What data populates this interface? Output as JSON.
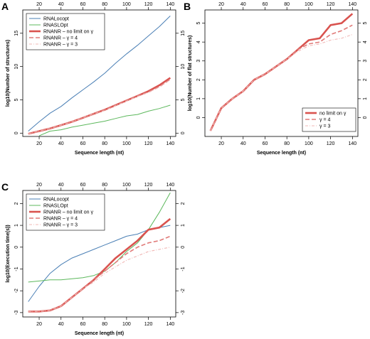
{
  "chart_data": [
    {
      "panel": "A",
      "type": "line",
      "xlabel": "Sequence length (nt)",
      "ylabel": "log10(Number of structures)",
      "xlim": [
        5,
        145
      ],
      "ylim": [
        -0.5,
        18.5
      ],
      "xticks": [
        20,
        40,
        60,
        80,
        100,
        120,
        140
      ],
      "yticks": [
        0,
        5,
        10,
        15
      ],
      "grid": false,
      "legend_position": "top-left",
      "x": [
        10,
        20,
        30,
        40,
        50,
        60,
        70,
        80,
        90,
        100,
        110,
        120,
        130,
        140
      ],
      "series": [
        {
          "name": "RNALocopt",
          "color": "#4a7fb5",
          "width": 1,
          "dash": "",
          "values": [
            0.3,
            1.7,
            3.0,
            4.0,
            5.3,
            6.5,
            7.7,
            9.0,
            10.5,
            11.9,
            13.2,
            14.6,
            16.0,
            17.6
          ]
        },
        {
          "name": "RNASLOpt",
          "color": "#5cb85c",
          "width": 1,
          "dash": "",
          "values": [
            null,
            -0.4,
            0.3,
            0.5,
            0.9,
            1.2,
            1.5,
            1.8,
            2.2,
            2.6,
            2.8,
            3.3,
            3.7,
            4.2
          ]
        },
        {
          "name": "RNANR – no limit on γ",
          "color": "#d9534f",
          "width": 2.6,
          "dash": "",
          "values": [
            -0.1,
            0.3,
            0.7,
            1.2,
            1.7,
            2.3,
            2.9,
            3.5,
            4.2,
            4.9,
            5.6,
            6.3,
            7.2,
            8.3
          ]
        },
        {
          "name": "RNANR – γ = 4",
          "color": "#e07a78",
          "width": 1.6,
          "dash": "6,3",
          "values": [
            -0.1,
            0.3,
            0.7,
            1.2,
            1.7,
            2.3,
            2.9,
            3.5,
            4.2,
            4.9,
            5.6,
            6.2,
            7.0,
            8.1
          ]
        },
        {
          "name": "RNANR – γ = 3",
          "color": "#f1b8b6",
          "width": 1.1,
          "dash": "4,2,1,2",
          "values": [
            -0.1,
            0.3,
            0.7,
            1.2,
            1.7,
            2.3,
            2.9,
            3.4,
            4.1,
            4.8,
            5.5,
            6.1,
            6.9,
            8.0
          ]
        }
      ]
    },
    {
      "panel": "B",
      "type": "line",
      "xlabel": "Sequence length (nt)",
      "ylabel": "log10(Number of flat structures)",
      "xlim": [
        5,
        145
      ],
      "ylim": [
        -1,
        5.7
      ],
      "xticks": [
        20,
        40,
        60,
        80,
        100,
        120,
        140
      ],
      "yticks": [
        0,
        1,
        2,
        3,
        4,
        5
      ],
      "grid": false,
      "legend_position": "bottom-right",
      "x": [
        10,
        20,
        30,
        40,
        50,
        60,
        70,
        80,
        90,
        100,
        110,
        120,
        130,
        140
      ],
      "series": [
        {
          "name": "no limit on γ",
          "color": "#d9534f",
          "width": 2.6,
          "dash": "",
          "values": [
            -0.7,
            0.5,
            1.0,
            1.4,
            2.0,
            2.3,
            2.7,
            3.1,
            3.6,
            4.1,
            4.2,
            4.9,
            5.0,
            5.5
          ]
        },
        {
          "name": "γ = 4",
          "color": "#e07a78",
          "width": 1.6,
          "dash": "6,3",
          "values": [
            -0.7,
            0.5,
            1.0,
            1.4,
            2.0,
            2.3,
            2.7,
            3.1,
            3.6,
            3.9,
            4.0,
            4.4,
            4.6,
            4.9
          ]
        },
        {
          "name": "γ = 3",
          "color": "#f1b8b6",
          "width": 1.1,
          "dash": "4,2,1,2",
          "values": [
            -0.7,
            0.5,
            1.0,
            1.4,
            2.0,
            2.3,
            2.7,
            3.1,
            3.5,
            3.8,
            3.9,
            4.1,
            4.2,
            4.4
          ]
        }
      ]
    },
    {
      "panel": "C",
      "type": "line",
      "xlabel": "Sequence length (nt)",
      "ylabel": "log10(Execution time(s))",
      "xlim": [
        5,
        145
      ],
      "ylim": [
        -3.2,
        2.6
      ],
      "xticks": [
        20,
        40,
        60,
        80,
        100,
        120,
        140
      ],
      "yticks": [
        -3,
        -2,
        -1,
        0,
        1,
        2
      ],
      "grid": false,
      "legend_position": "top-left",
      "x": [
        10,
        20,
        30,
        40,
        50,
        60,
        70,
        80,
        90,
        100,
        110,
        120,
        130,
        140
      ],
      "series": [
        {
          "name": "RNALocopt",
          "color": "#4a7fb5",
          "width": 1,
          "dash": "",
          "values": [
            -2.5,
            -1.8,
            -1.2,
            -0.8,
            -0.5,
            -0.3,
            -0.1,
            0.1,
            0.3,
            0.5,
            0.6,
            0.8,
            0.9,
            1.0
          ]
        },
        {
          "name": "RNASLOpt",
          "color": "#5cb85c",
          "width": 1,
          "dash": "",
          "values": [
            -1.6,
            -1.55,
            -1.5,
            -1.5,
            -1.45,
            -1.4,
            -1.3,
            -1.1,
            -0.7,
            -0.2,
            0.2,
            0.8,
            1.6,
            2.5
          ]
        },
        {
          "name": "RNANR – no limit on γ",
          "color": "#d9534f",
          "width": 2.6,
          "dash": "",
          "values": [
            -2.95,
            -2.95,
            -2.9,
            -2.7,
            -2.3,
            -1.9,
            -1.5,
            -1.0,
            -0.5,
            -0.1,
            0.3,
            0.8,
            0.9,
            1.3
          ]
        },
        {
          "name": "RNANR – γ = 4",
          "color": "#e07a78",
          "width": 1.6,
          "dash": "6,3",
          "values": [
            -2.95,
            -2.95,
            -2.9,
            -2.7,
            -2.3,
            -1.9,
            -1.5,
            -1.1,
            -0.7,
            -0.3,
            0.0,
            0.2,
            0.3,
            0.5
          ]
        },
        {
          "name": "RNANR – γ = 3",
          "color": "#f1b8b6",
          "width": 1.1,
          "dash": "4,2,1,2",
          "values": [
            -2.95,
            -2.95,
            -2.9,
            -2.7,
            -2.3,
            -1.9,
            -1.6,
            -1.2,
            -0.9,
            -0.6,
            -0.4,
            -0.2,
            -0.1,
            0.0
          ]
        }
      ]
    }
  ]
}
